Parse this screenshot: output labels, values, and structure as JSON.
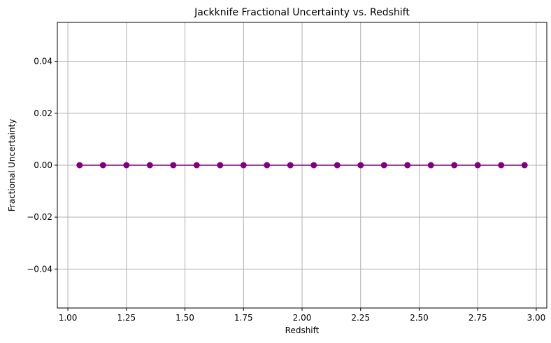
{
  "chart_data": {
    "type": "line",
    "title": "Jackknife Fractional Uncertainty vs. Redshift",
    "xlabel": "Redshift",
    "ylabel": "Fractional Uncertainty",
    "xlim": [
      0.955,
      3.045
    ],
    "ylim": [
      -0.055,
      0.055
    ],
    "x_ticks": [
      1.0,
      1.25,
      1.5,
      1.75,
      2.0,
      2.25,
      2.5,
      2.75,
      3.0
    ],
    "x_tick_labels": [
      "1.00",
      "1.25",
      "1.50",
      "1.75",
      "2.00",
      "2.25",
      "2.50",
      "2.75",
      "3.00"
    ],
    "y_ticks": [
      -0.04,
      -0.02,
      0.0,
      0.02,
      0.04
    ],
    "y_tick_labels": [
      "−0.04",
      "−0.02",
      "0.00",
      "0.02",
      "0.04"
    ],
    "grid": true,
    "series": [
      {
        "color": "#800080",
        "marker": "circle",
        "x": [
          1.05,
          1.15,
          1.25,
          1.35,
          1.45,
          1.55,
          1.65,
          1.75,
          1.85,
          1.95,
          2.05,
          2.15,
          2.25,
          2.35,
          2.45,
          2.55,
          2.65,
          2.75,
          2.85,
          2.95
        ],
        "y": [
          0,
          0,
          0,
          0,
          0,
          0,
          0,
          0,
          0,
          0,
          0,
          0,
          0,
          0,
          0,
          0,
          0,
          0,
          0,
          0
        ]
      }
    ]
  }
}
